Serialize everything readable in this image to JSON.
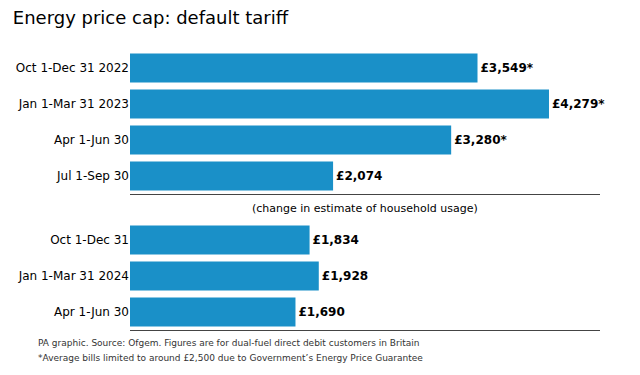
{
  "chart_data": [
    {
      "type": "bar",
      "title": "Energy price cap: default tariff",
      "orientation": "horizontal",
      "categories": [
        "Oct 1-Dec 31 2022",
        "Jan 1-Mar 31 2023",
        "Apr 1-Jun 30",
        "Jul 1-Sep 30"
      ],
      "values": [
        3549,
        4279,
        3280,
        2074
      ],
      "value_labels": [
        "£3,549*",
        "£4,279*",
        "£3,280*",
        "£2,074"
      ],
      "color": "#1a90c8",
      "xlim": [
        0,
        4800
      ],
      "data_labels": true,
      "tick_labels": "y",
      "grid": false
    },
    {
      "type": "bar",
      "subtitle": "(change in estimate of household usage)",
      "annotations": [
        "PA graphic. Source: Ofgem. Figures are for dual-fuel direct debit customers in Britain",
        "*Average bills limited to around £2,500 due to Government’s Energy Price Guarantee"
      ],
      "orientation": "horizontal",
      "categories": [
        "Oct 1-Dec 31",
        "Jan 1-Mar 31 2024",
        "Apr 1-Jun 30"
      ],
      "values": [
        1834,
        1928,
        1690
      ],
      "value_labels": [
        "£1,834",
        "£1,928",
        "£1,690"
      ],
      "color": "#1a90c8",
      "xlim": [
        0,
        4800
      ],
      "data_labels": true,
      "tick_labels": "y",
      "grid": false
    }
  ]
}
